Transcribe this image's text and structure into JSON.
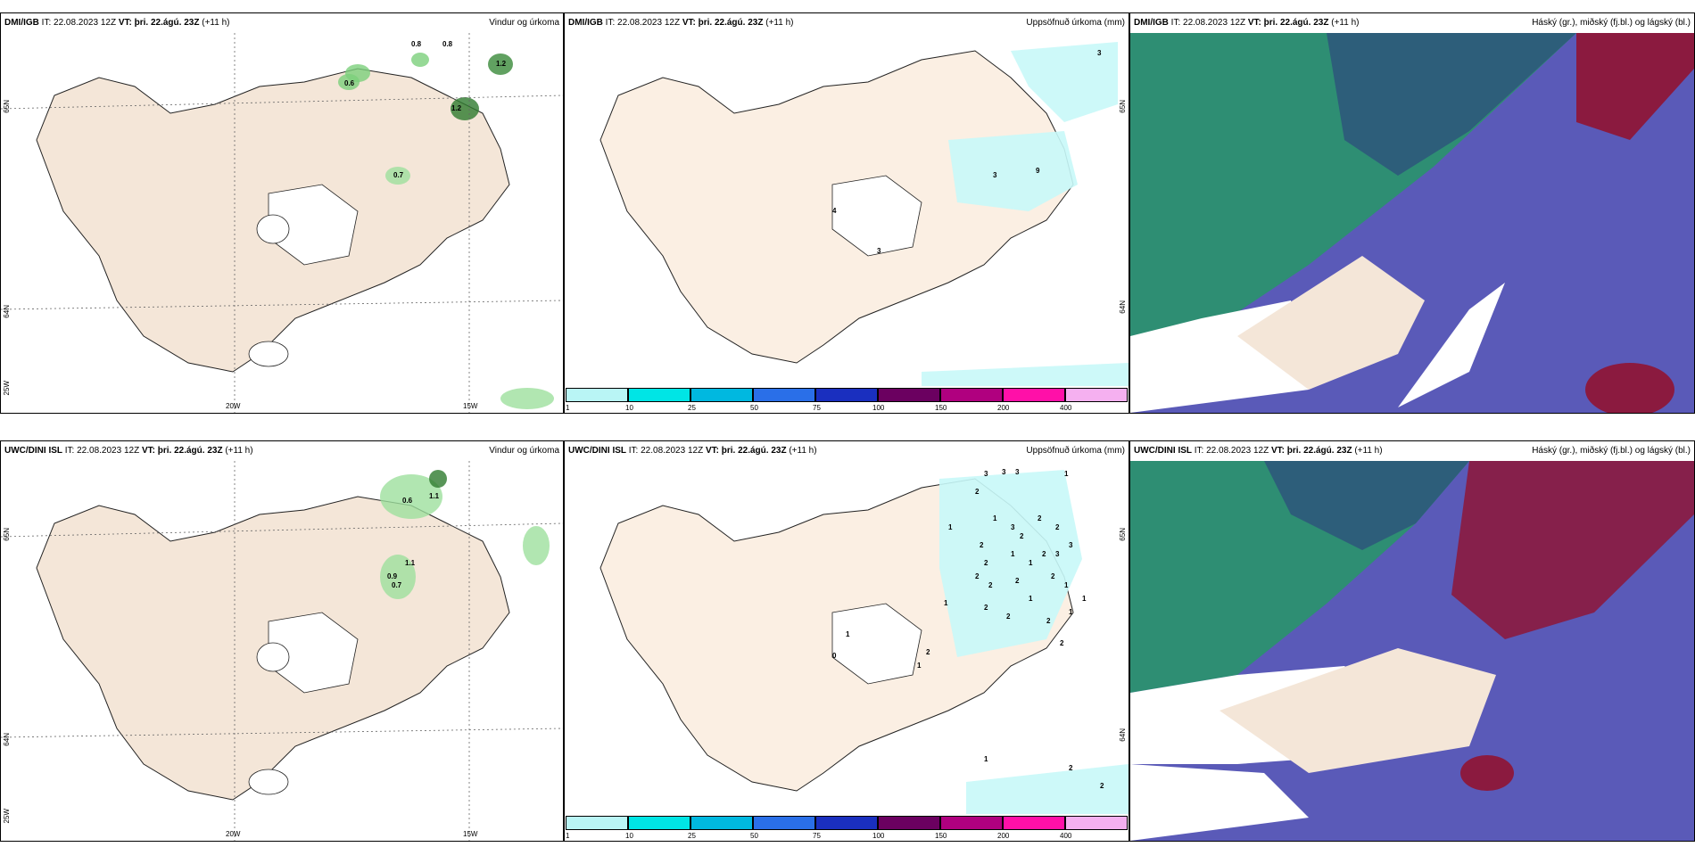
{
  "panels": [
    {
      "model": "DMI/IGB",
      "it": "IT: 22.08.2023 12Z",
      "vt": "VT: þri. 22.ágú. 23Z",
      "lead": "(+11 h)",
      "product": "Vindur og úrkoma",
      "precip_labels": [
        "0.8",
        "0.8",
        "0.6",
        "1.2",
        "1.2",
        "0.7"
      ],
      "axis": {
        "lat1": "65N",
        "lat2": "64N",
        "lat3": "25W",
        "lon1": "20W",
        "lon2": "15W"
      }
    },
    {
      "model": "DMI/IGB",
      "it": "IT: 22.08.2023 12Z",
      "vt": "VT: þri. 22.ágú. 23Z",
      "lead": "(+11 h)",
      "product": "Uppsöfnuð úrkoma (mm)",
      "precip_labels": [
        "3",
        "3",
        "9",
        "4",
        "3"
      ],
      "axis": {
        "lat1": "65N",
        "lat2": "64N"
      }
    },
    {
      "model": "DMI/IGB",
      "it": "IT: 22.08.2023 12Z",
      "vt": "VT: þri. 22.ágú. 23Z",
      "lead": "(+11 h)",
      "product": "Háský (gr.), miðský (fj.bl.) og lágský (bl.)"
    },
    {
      "model": "UWC/DINI ISL",
      "it": "IT: 22.08.2023 12Z",
      "vt": "VT: þri. 22.ágú. 23Z",
      "lead": "(+11 h)",
      "product": "Vindur og úrkoma",
      "precip_labels": [
        "0.6",
        "1.1",
        "1.1",
        "0.9",
        "0.7"
      ],
      "axis": {
        "lat1": "65N",
        "lat2": "64N",
        "lat3": "25W",
        "lon1": "20W",
        "lon2": "15W"
      }
    },
    {
      "model": "UWC/DINI ISL",
      "it": "IT: 22.08.2023 12Z",
      "vt": "VT: þri. 22.ágú. 23Z",
      "lead": "(+11 h)",
      "product": "Uppsöfnuð úrkoma (mm)",
      "precip_labels": [
        "3",
        "3",
        "3",
        "1",
        "2",
        "1",
        "3",
        "2",
        "2",
        "2",
        "1",
        "2",
        "1",
        "2",
        "3",
        "3",
        "2",
        "1",
        "1",
        "2",
        "2",
        "2",
        "2",
        "1",
        "1",
        "1",
        "2",
        "2",
        "2",
        "1",
        "2",
        "1",
        "0",
        "2",
        "1",
        "1",
        "2",
        "2"
      ],
      "axis": {
        "lat1": "65N",
        "lat2": "64N"
      }
    },
    {
      "model": "UWC/DINI ISL",
      "it": "IT: 22.08.2023 12Z",
      "vt": "VT: þri. 22.ágú. 23Z",
      "lead": "(+11 h)",
      "product": "Háský (gr.), miðský (fj.bl.) og lágský (bl.)"
    }
  ],
  "colorbar": {
    "ticks": [
      "1",
      "10",
      "25",
      "50",
      "75",
      "100",
      "150",
      "200",
      "400"
    ],
    "colors": [
      "#b9f5f5",
      "#00e5e5",
      "#00b8e0",
      "#2a6fe8",
      "#1a2fbf",
      "#6b0060",
      "#b0007f",
      "#ff10a8",
      "#f5b0f0"
    ]
  },
  "colors": {
    "land": "#f4e6d8",
    "land2": "#fbefe3",
    "cloud_high": "#2e8e73",
    "cloud_mid": "#2d5e7a",
    "cloud_low": "#5555b8",
    "cloud_red": "#8b1a3f",
    "precip_green": "#7ccf7c"
  }
}
